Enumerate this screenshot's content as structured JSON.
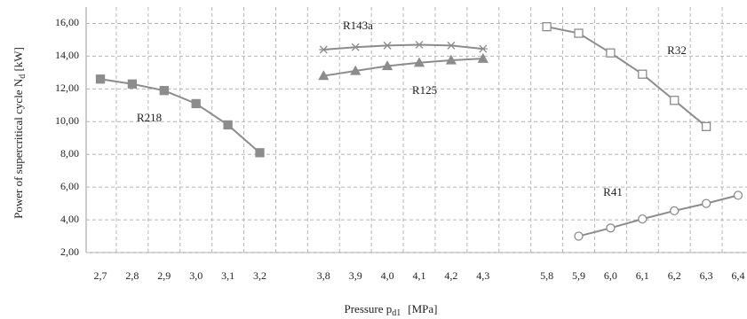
{
  "chart_data": {
    "type": "line",
    "x_label": {
      "text": "Pressure p",
      "sub": "d1",
      "unit": "[MPa]"
    },
    "y_label": {
      "text": "Power of supercritical cycle  N",
      "sub": "d",
      "unit": " [kW]"
    },
    "categories": [
      "2,7",
      "2,8",
      "2,9",
      "3,0",
      "3,1",
      "3,2",
      null,
      "3,8",
      "3,9",
      "4,0",
      "4,1",
      "4,2",
      "4,3",
      null,
      "5,8",
      "5,9",
      "6,0",
      "6,1",
      "6,2",
      "6,3",
      "6,4"
    ],
    "series": [
      {
        "name": "R218",
        "color": "#8c8c8c",
        "marker": "filled-square",
        "values": [
          12.6,
          12.3,
          11.9,
          11.1,
          9.8,
          8.1,
          null,
          null,
          null,
          null,
          null,
          null,
          null,
          null,
          null,
          null,
          null,
          null,
          null,
          null,
          null
        ]
      },
      {
        "name": "R143a",
        "color": "#8c8c8c",
        "marker": "star",
        "values": [
          null,
          null,
          null,
          null,
          null,
          null,
          null,
          14.4,
          14.55,
          14.65,
          14.7,
          14.65,
          14.45,
          null,
          null,
          null,
          null,
          null,
          null,
          null,
          null
        ]
      },
      {
        "name": "R125",
        "color": "#8c8c8c",
        "marker": "triangle",
        "values": [
          null,
          null,
          null,
          null,
          null,
          null,
          null,
          12.8,
          13.1,
          13.4,
          13.6,
          13.75,
          13.85,
          null,
          null,
          null,
          null,
          null,
          null,
          null,
          null
        ]
      },
      {
        "name": "R32",
        "color": "#8c8c8c",
        "marker": "open-square",
        "values": [
          null,
          null,
          null,
          null,
          null,
          null,
          null,
          null,
          null,
          null,
          null,
          null,
          null,
          null,
          15.8,
          15.4,
          14.2,
          12.9,
          11.3,
          9.7,
          null
        ]
      },
      {
        "name": "R41",
        "color": "#8c8c8c",
        "marker": "open-circle",
        "values": [
          null,
          null,
          null,
          null,
          null,
          null,
          null,
          null,
          null,
          null,
          null,
          null,
          null,
          null,
          null,
          3.0,
          3.5,
          4.05,
          4.55,
          5.0,
          5.5
        ]
      }
    ],
    "ylim": [
      2,
      17
    ],
    "yticks": [
      {
        "value": 2,
        "label": "2,00"
      },
      {
        "value": 4,
        "label": "4,00"
      },
      {
        "value": 6,
        "label": "6,00"
      },
      {
        "value": 8,
        "label": "8,00"
      },
      {
        "value": 10,
        "label": "10,00"
      },
      {
        "value": 12,
        "label": "12,00"
      },
      {
        "value": 14,
        "label": "14,00"
      },
      {
        "value": 16,
        "label": "16,00"
      }
    ],
    "grid": true
  }
}
